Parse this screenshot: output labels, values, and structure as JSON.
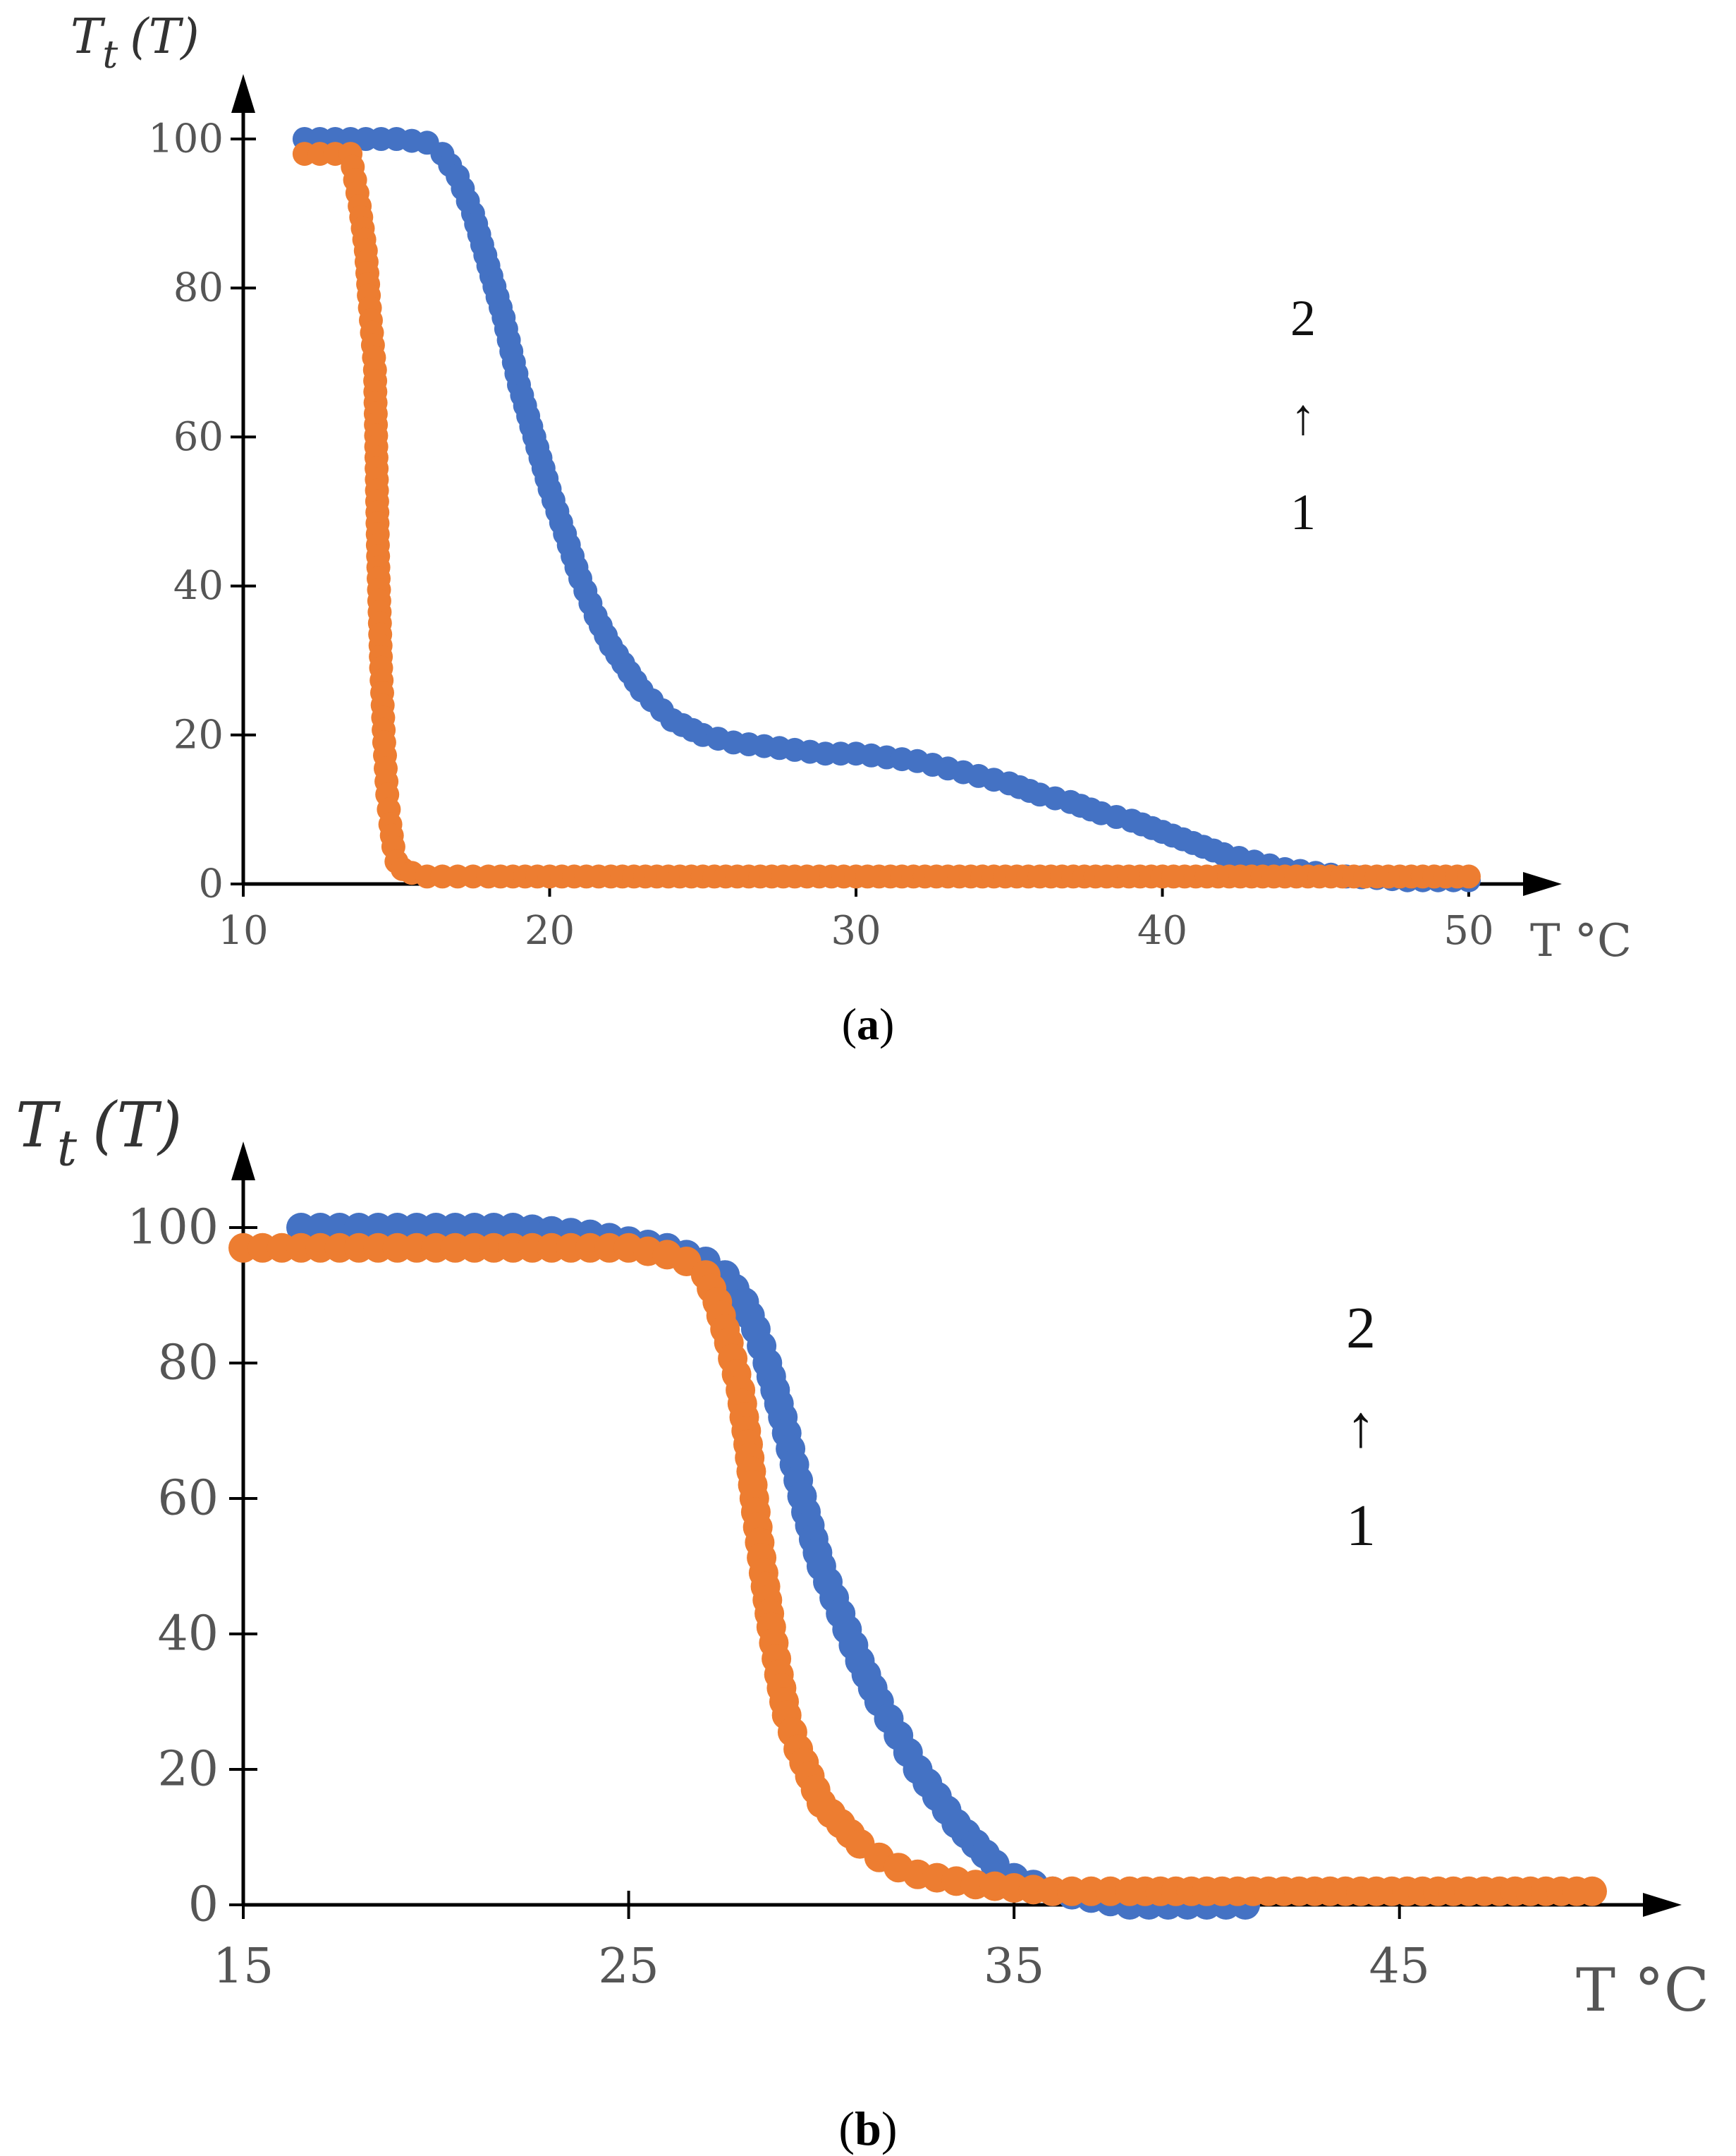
{
  "chart_data": [
    {
      "type": "scatter",
      "panel_label": "a",
      "ylabel_main": "T",
      "ylabel_sub": "t",
      "ylabel_arg": "(T)",
      "xunit": "T °C",
      "xlim": [
        10,
        50
      ],
      "ylim": [
        0,
        100
      ],
      "xticks": [
        "10",
        "20",
        "30",
        "40",
        "50"
      ],
      "yticks": [
        "0",
        "20",
        "40",
        "60",
        "80",
        "100"
      ],
      "annotation": {
        "top": "2",
        "arrow": "↑",
        "bottom": "1"
      },
      "series": [
        {
          "color": "#4472C4",
          "line": false,
          "x": [
            12,
            13,
            14,
            15,
            16,
            16.5,
            17,
            17.5,
            18,
            18.5,
            19,
            19.5,
            20,
            20.5,
            21,
            21.5,
            22,
            23,
            24,
            25,
            26,
            27,
            28,
            29,
            30,
            31,
            32,
            33,
            34,
            35,
            36,
            37,
            38,
            39,
            40,
            41,
            42,
            43,
            44,
            45,
            46,
            47,
            48,
            49,
            50
          ],
          "y": [
            100,
            100,
            100,
            100,
            99.5,
            98,
            95,
            90,
            83,
            76,
            67,
            60,
            53,
            47,
            41,
            36,
            32,
            26,
            22,
            20,
            19,
            18.5,
            18,
            17.5,
            17.5,
            17,
            16.5,
            15.5,
            14.5,
            13.5,
            12,
            11,
            9.5,
            8.5,
            7,
            5.5,
            4,
            3,
            2,
            1.5,
            1,
            0.8,
            0.5,
            0.5,
            0.5
          ]
        },
        {
          "color": "#ED7D31",
          "line": true,
          "x": [
            12,
            12.5,
            13,
            13.5,
            13.8,
            14,
            14.1,
            14.2,
            14.3,
            14.4,
            14.5,
            14.6,
            14.7,
            14.8,
            14.9,
            15,
            15.2,
            15.5,
            16,
            17,
            18,
            20,
            22,
            25,
            28,
            30,
            33,
            36,
            40,
            44,
            47,
            50
          ],
          "y": [
            98,
            98,
            98,
            98,
            91,
            85,
            79,
            74,
            69,
            44,
            29,
            19,
            12,
            8,
            5,
            3,
            2,
            1.5,
            1,
            1,
            1,
            1,
            1,
            1,
            1,
            1,
            1,
            1,
            1,
            1,
            1,
            1
          ]
        }
      ]
    },
    {
      "type": "scatter",
      "panel_label": "b",
      "ylabel_main": "T",
      "ylabel_sub": "t",
      "ylabel_arg": "(T)",
      "xunit": "T °C",
      "xlim": [
        15,
        50
      ],
      "ylim": [
        0,
        100
      ],
      "xticks": [
        "15",
        "25",
        "35",
        "45"
      ],
      "yticks": [
        "0",
        "20",
        "40",
        "60",
        "80",
        "100"
      ],
      "annotation": {
        "top": "2",
        "arrow": "↑",
        "bottom": "1"
      },
      "series": [
        {
          "color": "#4472C4",
          "line": false,
          "x": [
            16.5,
            17,
            18,
            19,
            20,
            21,
            22,
            23,
            24,
            25,
            26,
            26.5,
            27,
            27.5,
            28,
            28.3,
            28.6,
            29,
            29.3,
            29.6,
            30,
            30.5,
            31,
            31.5,
            32,
            32.5,
            33,
            33.5,
            34,
            34.5,
            35,
            35.5,
            36,
            37,
            38,
            39,
            40,
            41
          ],
          "y": [
            100,
            100,
            100,
            100,
            100,
            100,
            100,
            99.5,
            99,
            98,
            97,
            96,
            95,
            93,
            89,
            85,
            80,
            72,
            65,
            58,
            50,
            43,
            36,
            30,
            25,
            20,
            16,
            12,
            9,
            6,
            4,
            3,
            2,
            1,
            0,
            0,
            0,
            0
          ]
        },
        {
          "color": "#ED7D31",
          "line": false,
          "x": [
            15,
            16,
            17,
            18,
            19,
            20,
            21,
            22,
            23,
            24,
            25,
            26,
            26.5,
            27,
            27.3,
            27.6,
            27.9,
            28.1,
            28.3,
            28.5,
            28.7,
            28.9,
            29.1,
            29.4,
            29.7,
            30,
            30.5,
            31,
            31.5,
            32,
            32.5,
            33,
            34,
            35,
            36,
            37,
            38,
            40,
            42,
            44,
            46,
            48,
            50
          ],
          "y": [
            97,
            97,
            97,
            97,
            97,
            97,
            97,
            97,
            97,
            97,
            97,
            96,
            95,
            93,
            89,
            83,
            76,
            68,
            58,
            49,
            41,
            34,
            28,
            23,
            19,
            15,
            12,
            9,
            7,
            5.5,
            4.5,
            4,
            3,
            2.5,
            2,
            2,
            2,
            2,
            2,
            2,
            2,
            2,
            2
          ]
        }
      ]
    }
  ]
}
